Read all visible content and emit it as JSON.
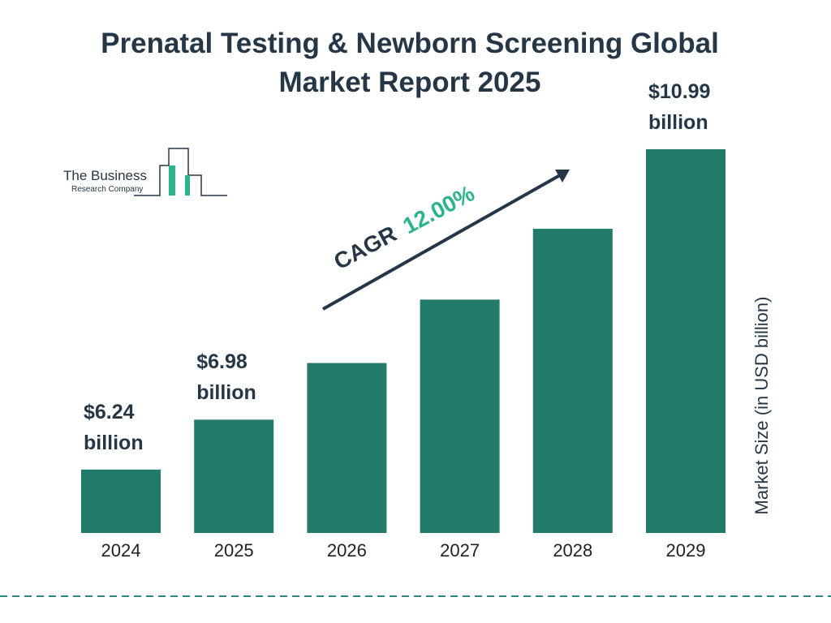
{
  "chart_data": {
    "type": "bar",
    "title": "Prenatal Testing & Newborn Screening Global Market Report 2025",
    "y_label": "Market Size (in USD billion)",
    "categories": [
      "2024",
      "2025",
      "2026",
      "2027",
      "2028",
      "2029"
    ],
    "values": [
      6.24,
      6.98,
      7.82,
      8.76,
      9.81,
      10.99
    ],
    "value_labels": [
      "$6.24 billion",
      "$6.98 billion",
      null,
      null,
      null,
      "$10.99 billion"
    ],
    "color": "#217a6a",
    "ylim": [
      5.3,
      11.2
    ],
    "annotations": [
      "CAGR",
      "12.00%"
    ],
    "logo": [
      "The Business",
      "Research Company"
    ]
  }
}
